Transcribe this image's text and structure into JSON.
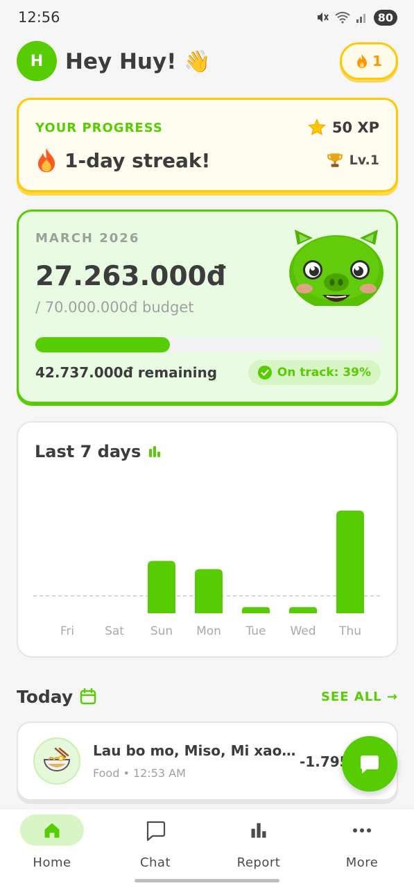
{
  "status": {
    "time": "12:56",
    "battery": "80"
  },
  "header": {
    "avatar_initial": "H",
    "greeting": "Hey Huy! 👋",
    "streak_count": "1"
  },
  "progress": {
    "label": "YOUR PROGRESS",
    "xp": "50 XP",
    "streak": "1-day streak!",
    "level": "Lv.1"
  },
  "budget": {
    "month": "MARCH 2026",
    "spent": "27.263.000đ",
    "total": "/ 70.000.000đ budget",
    "progress_fraction": 0.39,
    "remaining": "42.737.000đ remaining",
    "status": "On track: 39%"
  },
  "chart_data": {
    "type": "bar",
    "title": "Last 7 days",
    "categories": [
      "Fri",
      "Sat",
      "Sun",
      "Mon",
      "Tue",
      "Wed",
      "Thu"
    ],
    "values": [
      0,
      0,
      0.51,
      0.43,
      0.06,
      0.06,
      1.0
    ],
    "average_line": 0.17,
    "grid": false
  },
  "today": {
    "title": "Today",
    "see_all": "SEE ALL →",
    "transactions": [
      {
        "name": "Lau bo mo, Miso, Mi xao h…",
        "meta": "Food • 12:53 AM",
        "amount": "-1.795."
      }
    ]
  },
  "nav": {
    "items": [
      {
        "label": "Home",
        "icon": "home-icon",
        "active": true
      },
      {
        "label": "Chat",
        "icon": "chat-icon",
        "active": false
      },
      {
        "label": "Report",
        "icon": "report-icon",
        "active": false
      },
      {
        "label": "More",
        "icon": "more-icon",
        "active": false
      }
    ]
  },
  "colors": {
    "brand": "#58cc02",
    "gold": "#ffc800",
    "text": "#3c3c3c"
  }
}
